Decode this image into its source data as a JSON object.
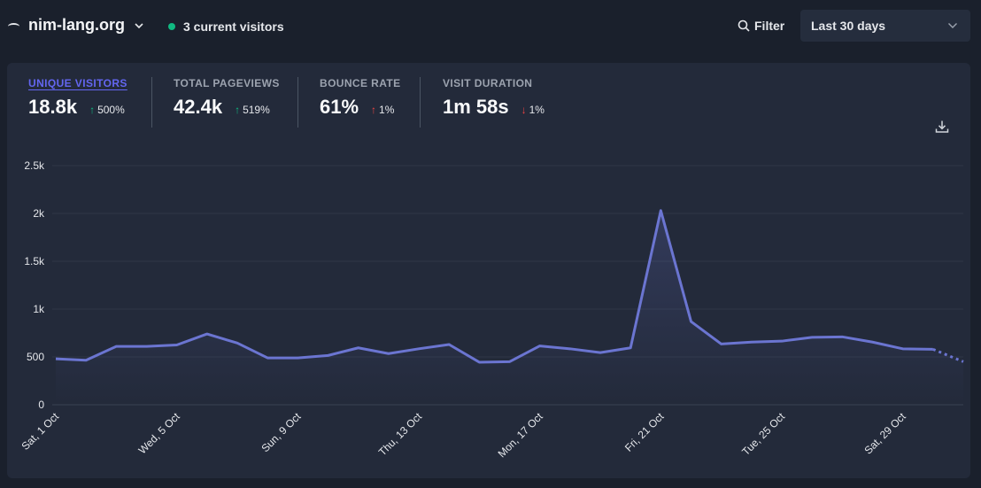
{
  "header": {
    "site_name": "nim-lang.org",
    "current_visitors": "3 current visitors",
    "filter_label": "Filter",
    "period_label": "Last 30 days"
  },
  "icons": {
    "favicon": "nim-crown-icon",
    "site_dropdown": "chevron-down-icon",
    "visitors": "live-dot-icon",
    "filter": "search-icon",
    "period_dropdown": "chevron-down-icon",
    "download": "download-icon"
  },
  "colors": {
    "accent": "#6366f1",
    "line": "#6b75d1",
    "live_dot": "#10b981",
    "up": "#10b981",
    "down": "#ef4444"
  },
  "stats": [
    {
      "label": "UNIQUE VISITORS",
      "value": "18.8k",
      "change": "500%",
      "direction": "up",
      "active": true
    },
    {
      "label": "TOTAL PAGEVIEWS",
      "value": "42.4k",
      "change": "519%",
      "direction": "up",
      "active": false
    },
    {
      "label": "BOUNCE RATE",
      "value": "61%",
      "change": "1%",
      "direction": "up",
      "active": false
    },
    {
      "label": "VISIT DURATION",
      "value": "1m 58s",
      "change": "1%",
      "direction": "down",
      "active": false
    }
  ],
  "chart_data": {
    "type": "area",
    "series": [
      {
        "values": [
          480,
          465,
          610,
          610,
          625,
          740,
          645,
          490,
          490,
          515,
          595,
          535,
          585,
          630,
          445,
          450,
          615,
          585,
          545,
          595,
          2030,
          870,
          635,
          655,
          665,
          705,
          710,
          655,
          585,
          580,
          450
        ]
      }
    ],
    "dotted_from_index": 30,
    "x_labels": [
      {
        "i": 0,
        "text": "Sat, 1 Oct"
      },
      {
        "i": 4,
        "text": "Wed, 5 Oct"
      },
      {
        "i": 8,
        "text": "Sun, 9 Oct"
      },
      {
        "i": 12,
        "text": "Thu, 13 Oct"
      },
      {
        "i": 16,
        "text": "Mon, 17 Oct"
      },
      {
        "i": 20,
        "text": "Fri, 21 Oct"
      },
      {
        "i": 24,
        "text": "Tue, 25 Oct"
      },
      {
        "i": 28,
        "text": "Sat, 29 Oct"
      }
    ],
    "y_ticks": [
      {
        "v": 0,
        "text": "0"
      },
      {
        "v": 500,
        "text": "500"
      },
      {
        "v": 1000,
        "text": "1k"
      },
      {
        "v": 1500,
        "text": "1.5k"
      },
      {
        "v": 2000,
        "text": "2k"
      },
      {
        "v": 2500,
        "text": "2.5k"
      }
    ],
    "ylim": [
      0,
      2500
    ],
    "grid": true
  }
}
